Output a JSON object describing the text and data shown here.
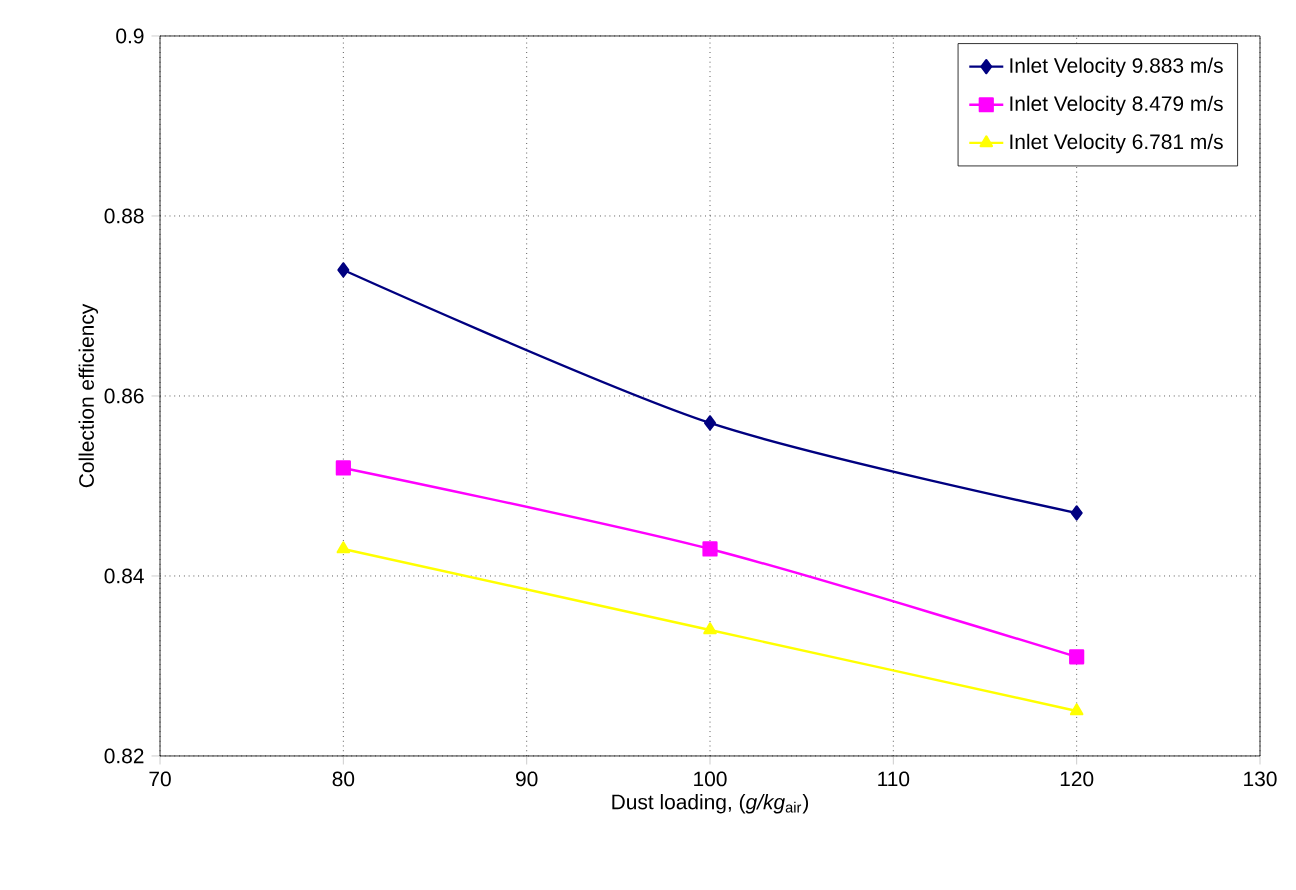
{
  "chart_data": {
    "type": "line",
    "xlabel": "Dust loading, (*g/kg*$_{air}$)",
    "ylabel": "Collection efficiency",
    "x": [
      80,
      100,
      120
    ],
    "series": [
      {
        "name": "Inlet Velocity 9.883 m/s",
        "color": "#000080",
        "marker": "diamond",
        "values": [
          0.874,
          0.857,
          0.847
        ]
      },
      {
        "name": "Inlet Velocity 8.479 m/s",
        "color": "#ff00ff",
        "marker": "square",
        "values": [
          0.852,
          0.843,
          0.831
        ]
      },
      {
        "name": "Inlet Velocity 6.781 m/s",
        "color": "#ffff00",
        "marker": "triangle",
        "values": [
          0.843,
          0.834,
          0.825
        ]
      }
    ],
    "xlim": [
      70,
      130
    ],
    "xticks": [
      70,
      80,
      90,
      100,
      110,
      120,
      130
    ],
    "ylim": [
      0.82,
      0.9
    ],
    "yticks": [
      0.82,
      0.84,
      0.86,
      0.88,
      0.9
    ],
    "grid": true,
    "legend": "top right"
  }
}
